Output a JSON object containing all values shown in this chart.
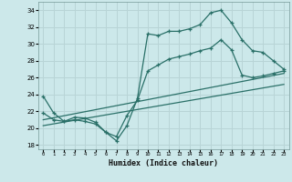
{
  "xlabel": "Humidex (Indice chaleur)",
  "bg_color": "#cce8ea",
  "grid_color": "#b8d4d6",
  "line_color": "#2a7068",
  "x_ticks": [
    0,
    1,
    2,
    3,
    4,
    5,
    6,
    7,
    8,
    9,
    10,
    11,
    12,
    13,
    14,
    15,
    16,
    17,
    18,
    19,
    20,
    21,
    22,
    23
  ],
  "y_ticks": [
    18,
    20,
    22,
    24,
    26,
    28,
    30,
    32,
    34
  ],
  "xlim": [
    -0.5,
    23.5
  ],
  "ylim": [
    17.5,
    35.0
  ],
  "curve1_x": [
    0,
    1,
    2,
    3,
    4,
    5,
    6,
    7,
    8,
    9,
    10,
    11,
    12,
    13,
    14,
    15,
    16,
    17,
    18,
    19,
    20,
    21,
    22,
    23
  ],
  "curve1_y": [
    23.8,
    21.8,
    20.8,
    21.3,
    21.2,
    20.7,
    19.5,
    18.5,
    20.3,
    23.5,
    31.2,
    31.0,
    31.5,
    31.5,
    31.8,
    32.3,
    33.7,
    34.0,
    32.5,
    30.5,
    29.2,
    29.0,
    28.0,
    27.0
  ],
  "curve2_x": [
    0,
    1,
    2,
    3,
    4,
    5,
    6,
    7,
    8,
    9,
    10,
    11,
    12,
    13,
    14,
    15,
    16,
    17,
    18,
    19,
    20,
    21,
    22,
    23
  ],
  "curve2_y": [
    21.8,
    21.0,
    20.8,
    21.0,
    20.8,
    20.5,
    19.5,
    19.0,
    21.5,
    23.3,
    26.8,
    27.5,
    28.2,
    28.5,
    28.8,
    29.2,
    29.5,
    30.5,
    29.3,
    26.3,
    26.0,
    26.2,
    26.5,
    26.8
  ],
  "line3_x": [
    0,
    23
  ],
  "line3_y": [
    21.0,
    26.5
  ],
  "line4_x": [
    0,
    23
  ],
  "line4_y": [
    20.3,
    25.2
  ]
}
